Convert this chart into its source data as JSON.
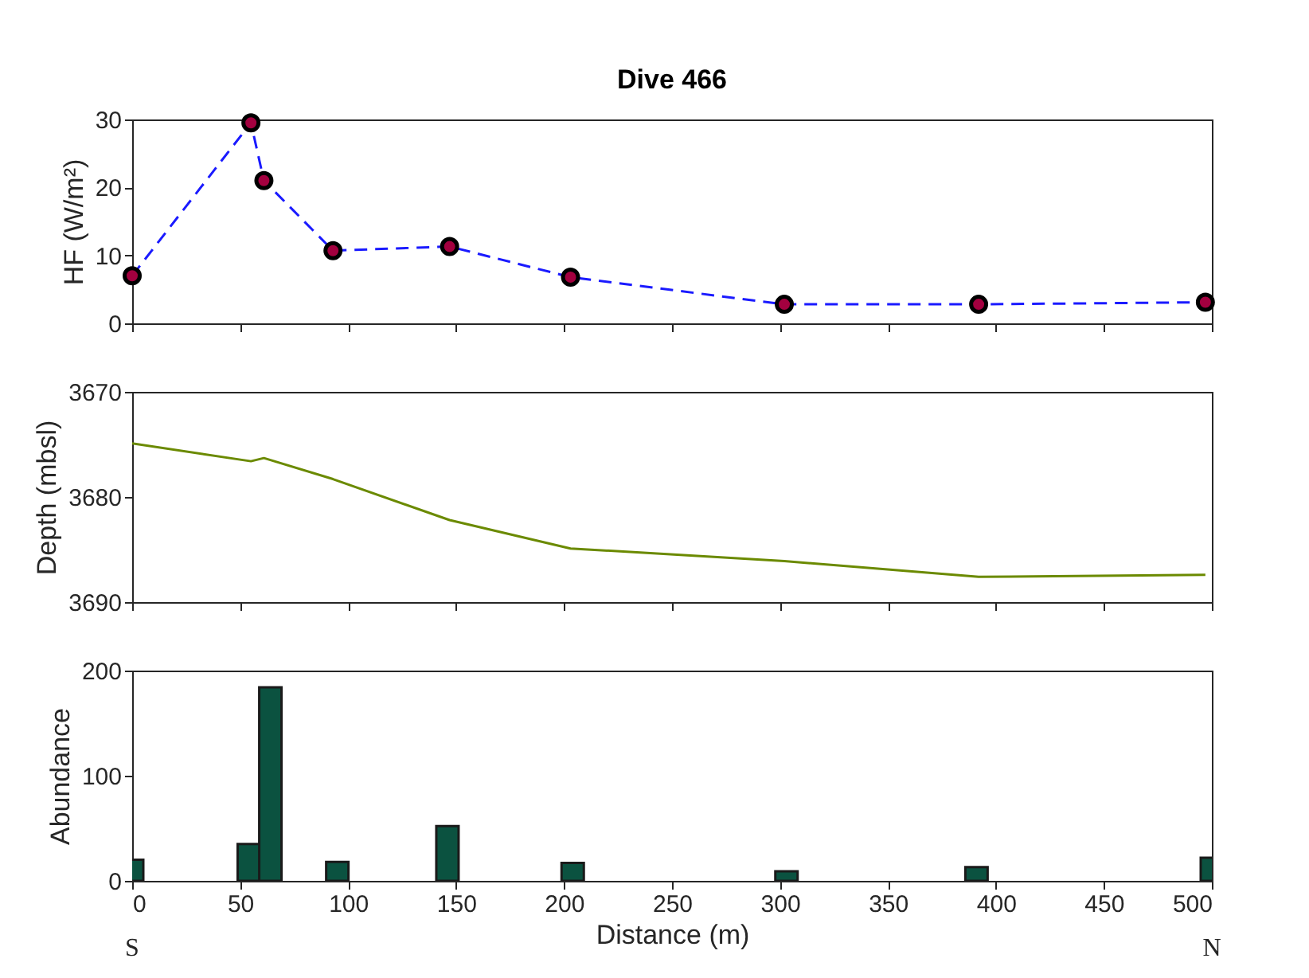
{
  "chart_data": [
    {
      "type": "line",
      "title": "Dive 466",
      "ylabel": "HF (W/m²)",
      "x": [
        0,
        55,
        61,
        93,
        147,
        203,
        302,
        392,
        497
      ],
      "series": [
        {
          "color": "#1a1aff",
          "marker": "none",
          "values": [
            7,
            29.5,
            21,
            10.7,
            11.3,
            6.8,
            2.8,
            2.8,
            3.1
          ]
        },
        {
          "type": "scatter",
          "marker": "circle",
          "color": "#a3003f",
          "values": [
            7,
            29.5,
            21,
            10.7,
            11.3,
            6.8,
            2.8,
            2.8,
            3.1
          ]
        }
      ],
      "line_style": "dashed",
      "xlim": [
        0,
        500
      ],
      "xticks": [
        0,
        50,
        100,
        150,
        200,
        250,
        300,
        350,
        400,
        450,
        500
      ],
      "ylim": [
        0,
        30
      ],
      "yticks": [
        0,
        10,
        20,
        30
      ],
      "tick_labels": "y"
    },
    {
      "type": "line",
      "ylabel": "Depth (mbsl)",
      "x": [
        0,
        55,
        61,
        93,
        147,
        203,
        302,
        392,
        497
      ],
      "series": [
        {
          "color": "#6b8a00",
          "values": [
            3674.9,
            3676.6,
            3676.3,
            3678.3,
            3682.2,
            3684.9,
            3686.1,
            3687.6,
            3687.4
          ]
        }
      ],
      "line_style": "solid",
      "xlim": [
        0,
        500
      ],
      "xticks": [
        0,
        50,
        100,
        150,
        200,
        250,
        300,
        350,
        400,
        450,
        500
      ],
      "ylim": [
        3690,
        3670
      ],
      "yticks": [
        3670,
        3680,
        3690
      ],
      "tick_labels": "y"
    },
    {
      "type": "bar",
      "ylabel": "Abundance",
      "xlabel": "Distance (m)",
      "x": [
        0,
        54,
        64,
        95,
        146,
        204,
        303,
        391,
        500
      ],
      "series": [
        {
          "color": "#0b5240",
          "values": [
            20,
            35,
            184,
            18,
            52,
            17,
            9,
            13,
            22
          ]
        }
      ],
      "xlim": [
        0,
        500
      ],
      "xticks": [
        0,
        50,
        100,
        150,
        200,
        250,
        300,
        350,
        400,
        450,
        500
      ],
      "ylim": [
        0,
        200
      ],
      "yticks": [
        0,
        100,
        200
      ],
      "annotations": [
        "S",
        "N"
      ]
    }
  ]
}
